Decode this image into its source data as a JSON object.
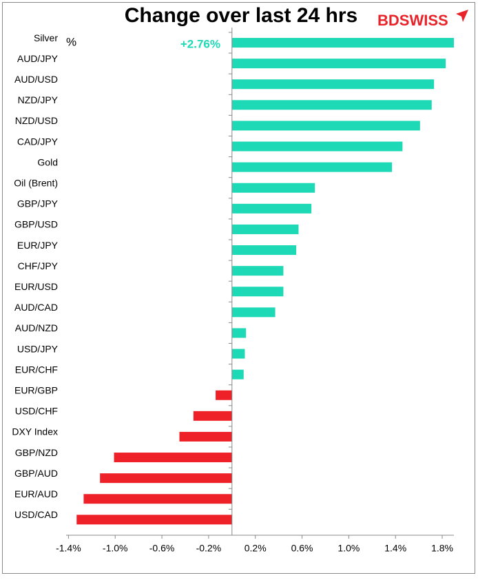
{
  "chart_data": {
    "type": "barh",
    "title": "Change over last 24 hrs",
    "brand": "BDSWISS",
    "unit_label": "%",
    "categories": [
      "Silver",
      "AUD/JPY",
      "AUD/USD",
      "NZD/JPY",
      "NZD/USD",
      "CAD/JPY",
      "Gold",
      "Oil (Brent)",
      "GBP/JPY",
      "GBP/USD",
      "EUR/JPY",
      "CHF/JPY",
      "EUR/USD",
      "AUD/CAD",
      "AUD/NZD",
      "USD/JPY",
      "EUR/CHF",
      "EUR/GBP",
      "USD/CHF",
      "DXY Index",
      "GBP/NZD",
      "GBP/AUD",
      "EUR/AUD",
      "USD/CAD"
    ],
    "values": [
      2.76,
      1.83,
      1.73,
      1.71,
      1.61,
      1.46,
      1.37,
      0.71,
      0.68,
      0.57,
      0.55,
      0.44,
      0.44,
      0.37,
      0.12,
      0.11,
      0.1,
      -0.14,
      -0.33,
      -0.45,
      -1.01,
      -1.13,
      -1.27,
      -1.33
    ],
    "value_labels": [
      "+2.76%",
      null,
      null,
      null,
      null,
      null,
      null,
      null,
      null,
      null,
      null,
      null,
      null,
      null,
      null,
      null,
      null,
      null,
      null,
      null,
      null,
      null,
      null,
      null
    ],
    "color": "#1dd9b6",
    "negative_color": "#ee2128",
    "xlim": [
      -1.42,
      1.9
    ],
    "xticks": [
      {
        "value": -1.4,
        "label": "-1.4%"
      },
      {
        "value": -1.0,
        "label": "-1.0%"
      },
      {
        "value": -0.6,
        "label": "-0.6%"
      },
      {
        "value": -0.2,
        "label": "-0.2%"
      },
      {
        "value": 0.2,
        "label": "0.2%"
      },
      {
        "value": 0.6,
        "label": "0.6%"
      },
      {
        "value": 1.0,
        "label": "1.0%"
      },
      {
        "value": 1.4,
        "label": "1.4%"
      },
      {
        "value": 1.8,
        "label": "1.8%"
      }
    ],
    "grid": false
  }
}
